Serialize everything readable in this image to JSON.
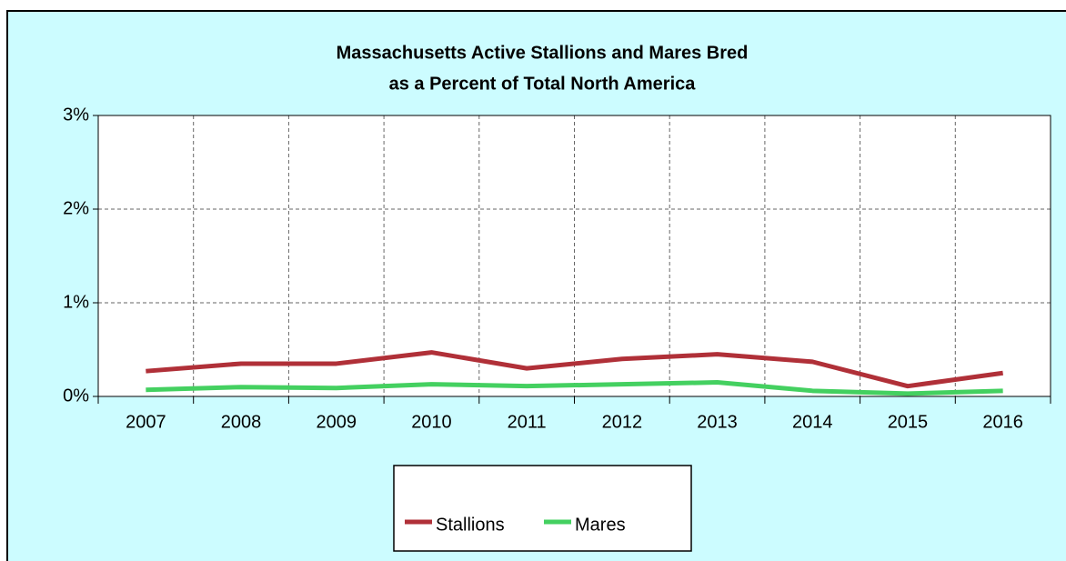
{
  "chart_data": {
    "type": "line",
    "title": [
      "Massachusetts Active Stallions and Mares Bred",
      "as a Percent of Total North America"
    ],
    "categories": [
      "2007",
      "2008",
      "2009",
      "2010",
      "2011",
      "2012",
      "2013",
      "2014",
      "2015",
      "2016"
    ],
    "series": [
      {
        "name": "Stallions",
        "color": "#b03038",
        "values": [
          0.27,
          0.35,
          0.35,
          0.47,
          0.3,
          0.4,
          0.45,
          0.37,
          0.11,
          0.25
        ]
      },
      {
        "name": "Mares",
        "color": "#44d060",
        "values": [
          0.07,
          0.1,
          0.09,
          0.13,
          0.11,
          0.13,
          0.15,
          0.06,
          0.03,
          0.06
        ]
      }
    ],
    "ylim": [
      0,
      3
    ],
    "yticks": [
      {
        "value": 0,
        "label": "0%"
      },
      {
        "value": 1,
        "label": "1%"
      },
      {
        "value": 2,
        "label": "2%"
      },
      {
        "value": 3,
        "label": "3%"
      }
    ],
    "grid": true,
    "legend": "bottom"
  }
}
